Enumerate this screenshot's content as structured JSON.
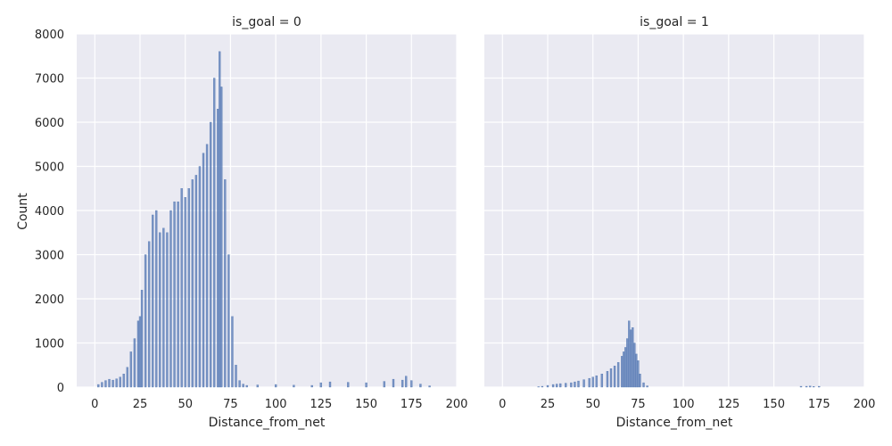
{
  "chart_data": [
    {
      "type": "bar",
      "subtype": "histogram",
      "title": "is_goal = 0",
      "xlabel": "Distance_from_net",
      "ylabel": "Count",
      "xlim": [
        -10,
        200
      ],
      "ylim": [
        0,
        8000
      ],
      "xticks": [
        0,
        25,
        50,
        75,
        100,
        125,
        150,
        175,
        200
      ],
      "yticks": [
        0,
        1000,
        2000,
        3000,
        4000,
        5000,
        6000,
        7000,
        8000
      ],
      "grid": true,
      "color": "#4c72b0",
      "bin_width": 1,
      "x": [
        2,
        4,
        6,
        8,
        10,
        12,
        14,
        16,
        18,
        20,
        22,
        24,
        25,
        26,
        28,
        30,
        32,
        34,
        36,
        38,
        40,
        42,
        44,
        46,
        48,
        50,
        52,
        54,
        56,
        58,
        60,
        62,
        64,
        66,
        68,
        69,
        70,
        72,
        74,
        76,
        78,
        80,
        82,
        84,
        90,
        100,
        110,
        120,
        125,
        130,
        140,
        150,
        160,
        165,
        170,
        172,
        175,
        180,
        185
      ],
      "values": [
        60,
        110,
        150,
        180,
        160,
        190,
        230,
        300,
        450,
        800,
        1100,
        1500,
        1600,
        2200,
        3000,
        3300,
        3900,
        4000,
        3500,
        3600,
        3500,
        4000,
        4200,
        4200,
        4500,
        4300,
        4500,
        4700,
        4800,
        5000,
        5300,
        5500,
        6000,
        7000,
        6300,
        7600,
        6800,
        4700,
        3000,
        1600,
        500,
        150,
        70,
        40,
        50,
        60,
        45,
        40,
        100,
        120,
        110,
        100,
        130,
        180,
        160,
        250,
        150,
        70,
        30
      ]
    },
    {
      "type": "bar",
      "subtype": "histogram",
      "title": "is_goal = 1",
      "xlabel": "Distance_from_net",
      "ylabel": "",
      "xlim": [
        -10,
        200
      ],
      "ylim": [
        0,
        8000
      ],
      "xticks": [
        0,
        25,
        50,
        75,
        100,
        125,
        150,
        175,
        200
      ],
      "grid": true,
      "color": "#4c72b0",
      "bin_width": 1,
      "x": [
        20,
        22,
        25,
        28,
        30,
        32,
        35,
        38,
        40,
        42,
        45,
        48,
        50,
        52,
        55,
        58,
        60,
        62,
        64,
        66,
        67,
        68,
        69,
        70,
        71,
        72,
        73,
        74,
        75,
        76,
        78,
        80,
        165,
        168,
        170,
        172,
        175
      ],
      "values": [
        10,
        20,
        40,
        60,
        70,
        80,
        90,
        100,
        120,
        140,
        170,
        200,
        230,
        260,
        300,
        360,
        420,
        480,
        560,
        700,
        800,
        900,
        1100,
        1500,
        1300,
        1350,
        1000,
        750,
        600,
        300,
        100,
        30,
        20,
        20,
        25,
        15,
        20
      ]
    }
  ]
}
